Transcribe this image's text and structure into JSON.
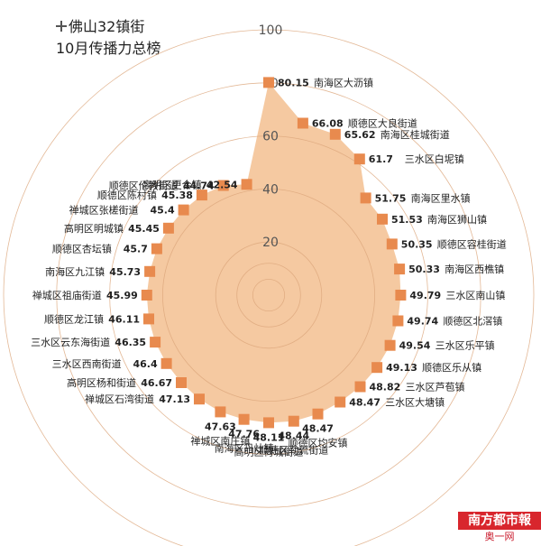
{
  "header": {
    "title_line1": "佛山32镇街",
    "title_line2": "10月传播力总榜"
  },
  "logo": {
    "brand": "南方都市報",
    "site": "奥一网oeeee.com"
  },
  "colors": {
    "fill": "#f5c9a1",
    "grid": "#dca67c",
    "marker": "#e88a4e",
    "text": "#222222"
  },
  "chart_data": {
    "type": "radar",
    "title": "佛山32镇街 10月传播力总榜",
    "rlim": [
      0,
      100
    ],
    "rticks": [
      20,
      40,
      60,
      80,
      100
    ],
    "categories": [
      "南海区大沥镇",
      "顺德区大良街道",
      "南海区桂城街道",
      "三水区白坭镇",
      "南海区里水镇",
      "南海区狮山镇",
      "顺德区容桂街道",
      "南海区西樵镇",
      "三水区南山镇",
      "顺德区北滘镇",
      "三水区乐平镇",
      "顺德区乐从镇",
      "三水区芦苞镇",
      "三水区大塘镇",
      "顺德区均安镇",
      "顺德区勒流街道",
      "高明区荷城街道",
      "南海区丹灶镇",
      "禅城区南庄镇",
      "禅城区石湾街道",
      "高明区杨和街道",
      "三水区西南街道",
      "三水区云东海街道",
      "顺德区龙江镇",
      "禅城区祖庙街道",
      "南海区九江镇",
      "顺德区杏坛镇",
      "高明区明城镇",
      "禅城区张槎街道",
      "顺德区陈村镇",
      "顺德区伦教街道",
      "高明区更合镇"
    ],
    "values": [
      80.15,
      66.08,
      65.62,
      61.7,
      51.75,
      51.53,
      50.35,
      50.33,
      49.79,
      49.74,
      49.54,
      49.13,
      48.82,
      48.47,
      48.47,
      48.44,
      48.11,
      47.76,
      47.63,
      47.13,
      46.67,
      46.4,
      46.35,
      46.11,
      45.99,
      45.73,
      45.7,
      45.45,
      45.4,
      45.38,
      44.74,
      42.54
    ],
    "value_labels": [
      "80.15",
      "66.08",
      "65.62",
      "61.7",
      "51.75",
      "51.53",
      "50.35",
      "50.33",
      "49.79",
      "49.74",
      "49.54",
      "49.13",
      "48.82",
      "48.47",
      "48.47",
      "48.44",
      "48.11",
      "47.76",
      "47.63",
      "47.13",
      "46.67",
      "46.4",
      "46.35",
      "46.11",
      "45.99",
      "45.73",
      "45.7",
      "45.45",
      "45.4",
      "45.38",
      "44.74",
      "42.54"
    ]
  }
}
